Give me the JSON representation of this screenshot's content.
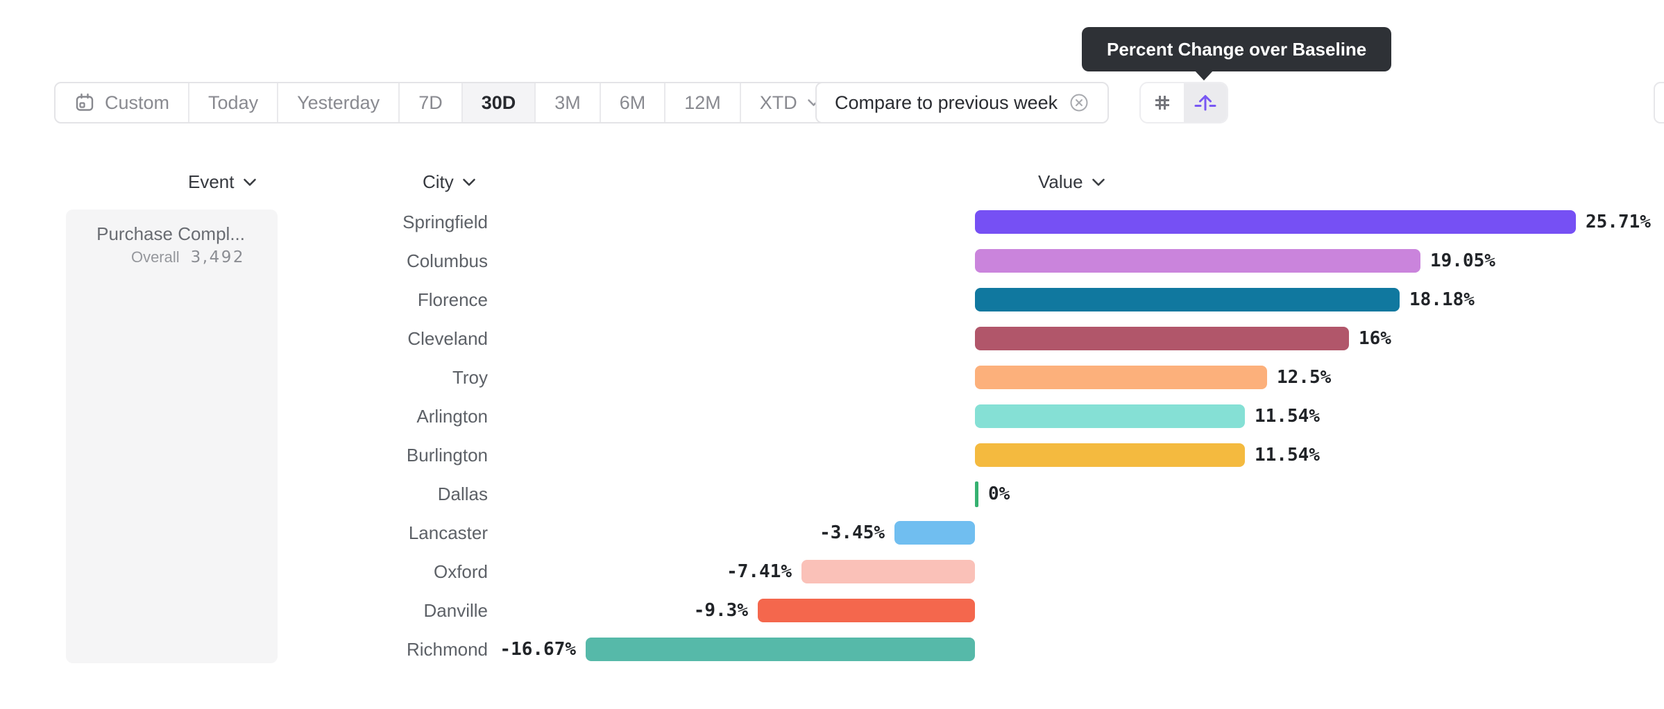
{
  "tooltip": {
    "text": "Percent Change over Baseline",
    "bg_color": "#2e3136"
  },
  "toolbar": {
    "date_ranges": [
      {
        "label": "Custom",
        "icon": "calendar-icon",
        "active": false
      },
      {
        "label": "Today",
        "active": false
      },
      {
        "label": "Yesterday",
        "active": false
      },
      {
        "label": "7D",
        "active": false
      },
      {
        "label": "30D",
        "active": true
      },
      {
        "label": "3M",
        "active": false
      },
      {
        "label": "6M",
        "active": false
      },
      {
        "label": "12M",
        "active": false
      },
      {
        "label": "XTD",
        "chevron": true,
        "active": false
      }
    ],
    "compare_label": "Compare to previous week",
    "compare_icon": "close-circle-icon",
    "view_toggle": {
      "left_icon": "grid-icon",
      "right_icon": "baseline-arrow-icon",
      "selected": "right",
      "accent_color": "#7857f3"
    }
  },
  "headers": {
    "event": "Event",
    "city": "City",
    "value": "Value",
    "chevron": "chevron-down-icon"
  },
  "event_panel": {
    "event_name": "Purchase Compl...",
    "metric_label": "Overall",
    "metric_value": "3,492"
  },
  "chart_data": {
    "type": "bar",
    "orientation": "horizontal",
    "title": "Percent Change over Baseline",
    "xlabel": "",
    "ylabel": "City",
    "xlim": [
      -16.67,
      25.71
    ],
    "categories": [
      "Springfield",
      "Columbus",
      "Florence",
      "Cleveland",
      "Troy",
      "Arlington",
      "Burlington",
      "Dallas",
      "Lancaster",
      "Oxford",
      "Danville",
      "Richmond"
    ],
    "values": [
      25.71,
      19.05,
      18.18,
      16,
      12.5,
      11.54,
      11.54,
      0,
      -3.45,
      -7.41,
      -9.3,
      -16.67
    ],
    "value_labels": [
      "25.71%",
      "19.05%",
      "18.18%",
      "16%",
      "12.5%",
      "11.54%",
      "11.54%",
      "0%",
      "-3.45%",
      "-7.41%",
      "-9.3%",
      "-16.67%"
    ],
    "bar_colors": [
      "#7650f4",
      "#ca84dc",
      "#10789f",
      "#b1566a",
      "#fcb07b",
      "#85e0d5",
      "#f4ba3f",
      "#36b171",
      "#70bef0",
      "#fac1b8",
      "#f4674d",
      "#56b9a9"
    ]
  }
}
